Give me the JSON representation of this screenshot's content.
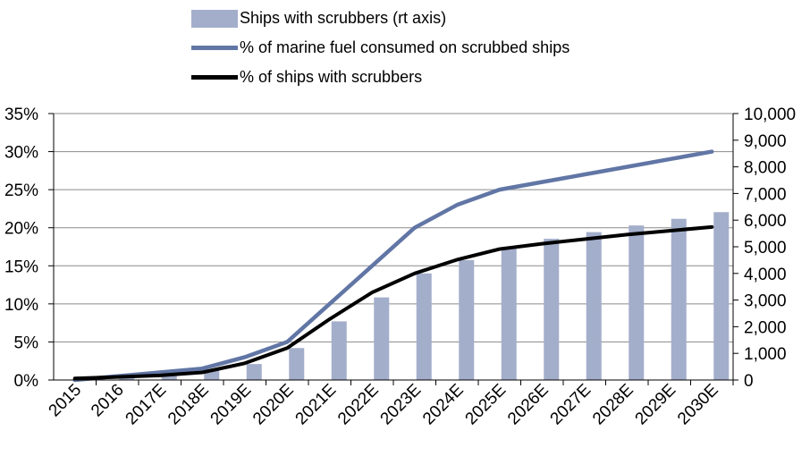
{
  "chart_data": {
    "type": "bar",
    "categories": [
      "2015",
      "2016",
      "2017E",
      "2018E",
      "2019E",
      "2020E",
      "2021E",
      "2022E",
      "2023E",
      "2024E",
      "2025E",
      "2026E",
      "2027E",
      "2028E",
      "2029E",
      "2030E"
    ],
    "series": [
      {
        "name": "Ships with scrubbers (rt axis)",
        "type": "bar",
        "axis": "right",
        "values": [
          100,
          100,
          200,
          400,
          600,
          1200,
          2200,
          3100,
          4000,
          4500,
          5000,
          5300,
          5550,
          5800,
          6050,
          6300
        ]
      },
      {
        "name": "% of marine fuel consumed on scrubbed ships",
        "type": "line",
        "axis": "left",
        "values": [
          0,
          0.5,
          1.0,
          1.5,
          3.0,
          5.0,
          10.0,
          15.0,
          20.0,
          23.0,
          25.0,
          26.0,
          27.0,
          28.0,
          29.0,
          30.0
        ]
      },
      {
        "name": "% of ships with scrubbers",
        "type": "line",
        "axis": "left",
        "values": [
          0.2,
          0.4,
          0.6,
          1.0,
          2.2,
          4.2,
          8.0,
          11.5,
          14.0,
          15.8,
          17.2,
          17.9,
          18.5,
          19.1,
          19.6,
          20.1
        ]
      }
    ],
    "left_axis": {
      "ylim": [
        0,
        35
      ],
      "ticks": [
        "0%",
        "5%",
        "10%",
        "15%",
        "20%",
        "25%",
        "30%",
        "35%"
      ]
    },
    "right_axis": {
      "ylim": [
        0,
        10000
      ],
      "ticks": [
        "0",
        "1,000",
        "2,000",
        "3,000",
        "4,000",
        "5,000",
        "6,000",
        "7,000",
        "8,000",
        "9,000",
        "10,000"
      ]
    },
    "grid": true,
    "legend_position": "top",
    "colors": {
      "bar": "#a3aecb",
      "blue_line": "#6176a5",
      "black_line": "#000000",
      "grid": "#8a8a8a"
    }
  },
  "legend": {
    "items": [
      {
        "label": "Ships with scrubbers (rt axis)"
      },
      {
        "label": "% of marine fuel consumed on scrubbed ships"
      },
      {
        "label": "% of ships with scrubbers"
      }
    ]
  }
}
